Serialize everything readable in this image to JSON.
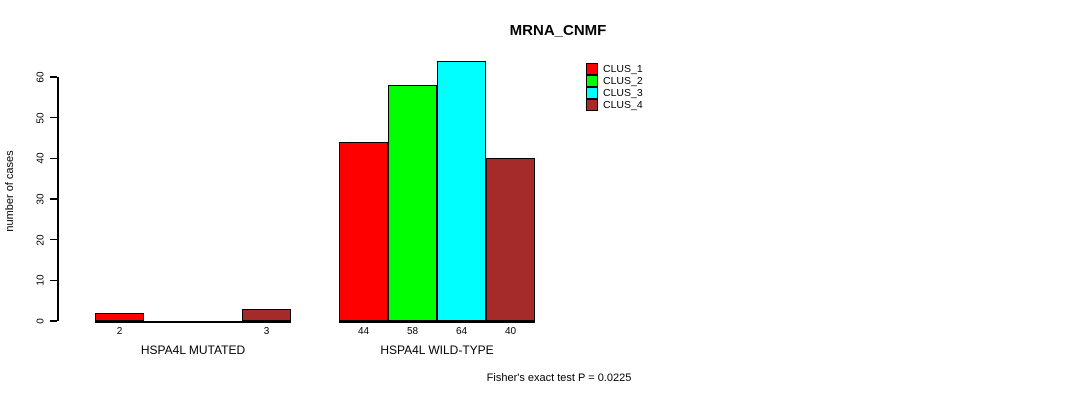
{
  "chart_data": {
    "type": "bar",
    "title": "MRNA_CNMF",
    "ylabel": "number of cases",
    "xlabel": "",
    "ylim": [
      0,
      60
    ],
    "yticks": [
      0,
      10,
      20,
      30,
      40,
      50,
      60
    ],
    "grid": false,
    "legend_position": "upper-right",
    "bar_value_labels": true,
    "show_zero_value_bars": false,
    "categories": [
      "HSPA4L MUTATED",
      "HSPA4L WILD-TYPE"
    ],
    "series": [
      {
        "name": "CLUS_1",
        "color": "#ff0000",
        "values": [
          2,
          44
        ]
      },
      {
        "name": "CLUS_2",
        "color": "#00ff00",
        "values": [
          0,
          58
        ]
      },
      {
        "name": "CLUS_3",
        "color": "#00ffff",
        "values": [
          0,
          64
        ]
      },
      {
        "name": "CLUS_4",
        "color": "#a52a2a",
        "values": [
          3,
          40
        ]
      }
    ],
    "annotation": "Fisher's exact test P = 0.0225"
  },
  "colors": {
    "axis": "#000000",
    "background": "#ffffff"
  }
}
